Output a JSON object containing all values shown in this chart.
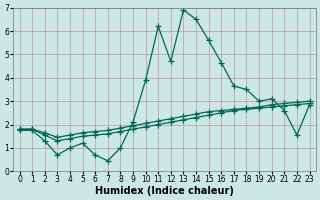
{
  "xlabel": "Humidex (Indice chaleur)",
  "background_color": "#cce8e4",
  "grid_color": "#bb9999",
  "line_color": "#006655",
  "xlim": [
    -0.5,
    23.5
  ],
  "ylim": [
    0,
    7
  ],
  "xticks": [
    0,
    1,
    2,
    3,
    4,
    5,
    6,
    7,
    8,
    9,
    10,
    11,
    12,
    13,
    14,
    15,
    16,
    17,
    18,
    19,
    20,
    21,
    22,
    23
  ],
  "yticks": [
    0,
    1,
    2,
    3,
    4,
    5,
    6,
    7
  ],
  "series1_x": [
    0,
    1,
    2,
    3,
    4,
    5,
    6,
    7,
    8,
    9,
    10,
    11,
    12,
    13,
    14,
    15,
    16,
    17,
    18,
    19,
    20,
    21,
    22,
    23
  ],
  "series1_y": [
    1.75,
    1.75,
    1.3,
    0.7,
    1.0,
    1.2,
    0.7,
    0.45,
    1.0,
    2.1,
    3.9,
    6.2,
    4.7,
    6.9,
    6.5,
    5.6,
    4.65,
    3.65,
    3.5,
    3.0,
    3.1,
    2.6,
    1.55,
    2.85
  ],
  "series2_x": [
    0,
    1,
    2,
    3,
    4,
    5,
    6,
    7,
    8,
    9,
    10,
    11,
    12,
    13,
    14,
    15,
    16,
    17,
    18,
    19,
    20,
    21,
    22,
    23
  ],
  "series2_y": [
    1.8,
    1.8,
    1.55,
    1.3,
    1.4,
    1.5,
    1.55,
    1.6,
    1.7,
    1.8,
    1.9,
    2.0,
    2.1,
    2.2,
    2.3,
    2.4,
    2.5,
    2.6,
    2.65,
    2.7,
    2.75,
    2.8,
    2.85,
    2.9
  ],
  "series3_x": [
    0,
    1,
    2,
    3,
    4,
    5,
    6,
    7,
    8,
    9,
    10,
    11,
    12,
    13,
    14,
    15,
    16,
    17,
    18,
    19,
    20,
    21,
    22,
    23
  ],
  "series3_y": [
    1.8,
    1.8,
    1.65,
    1.45,
    1.55,
    1.65,
    1.7,
    1.75,
    1.85,
    1.95,
    2.05,
    2.15,
    2.25,
    2.35,
    2.45,
    2.55,
    2.6,
    2.65,
    2.7,
    2.75,
    2.85,
    2.9,
    2.95,
    3.0
  ],
  "marker": "+",
  "markersize": 4,
  "linewidth": 0.9,
  "xlabel_fontsize": 7,
  "tick_fontsize": 5.5
}
